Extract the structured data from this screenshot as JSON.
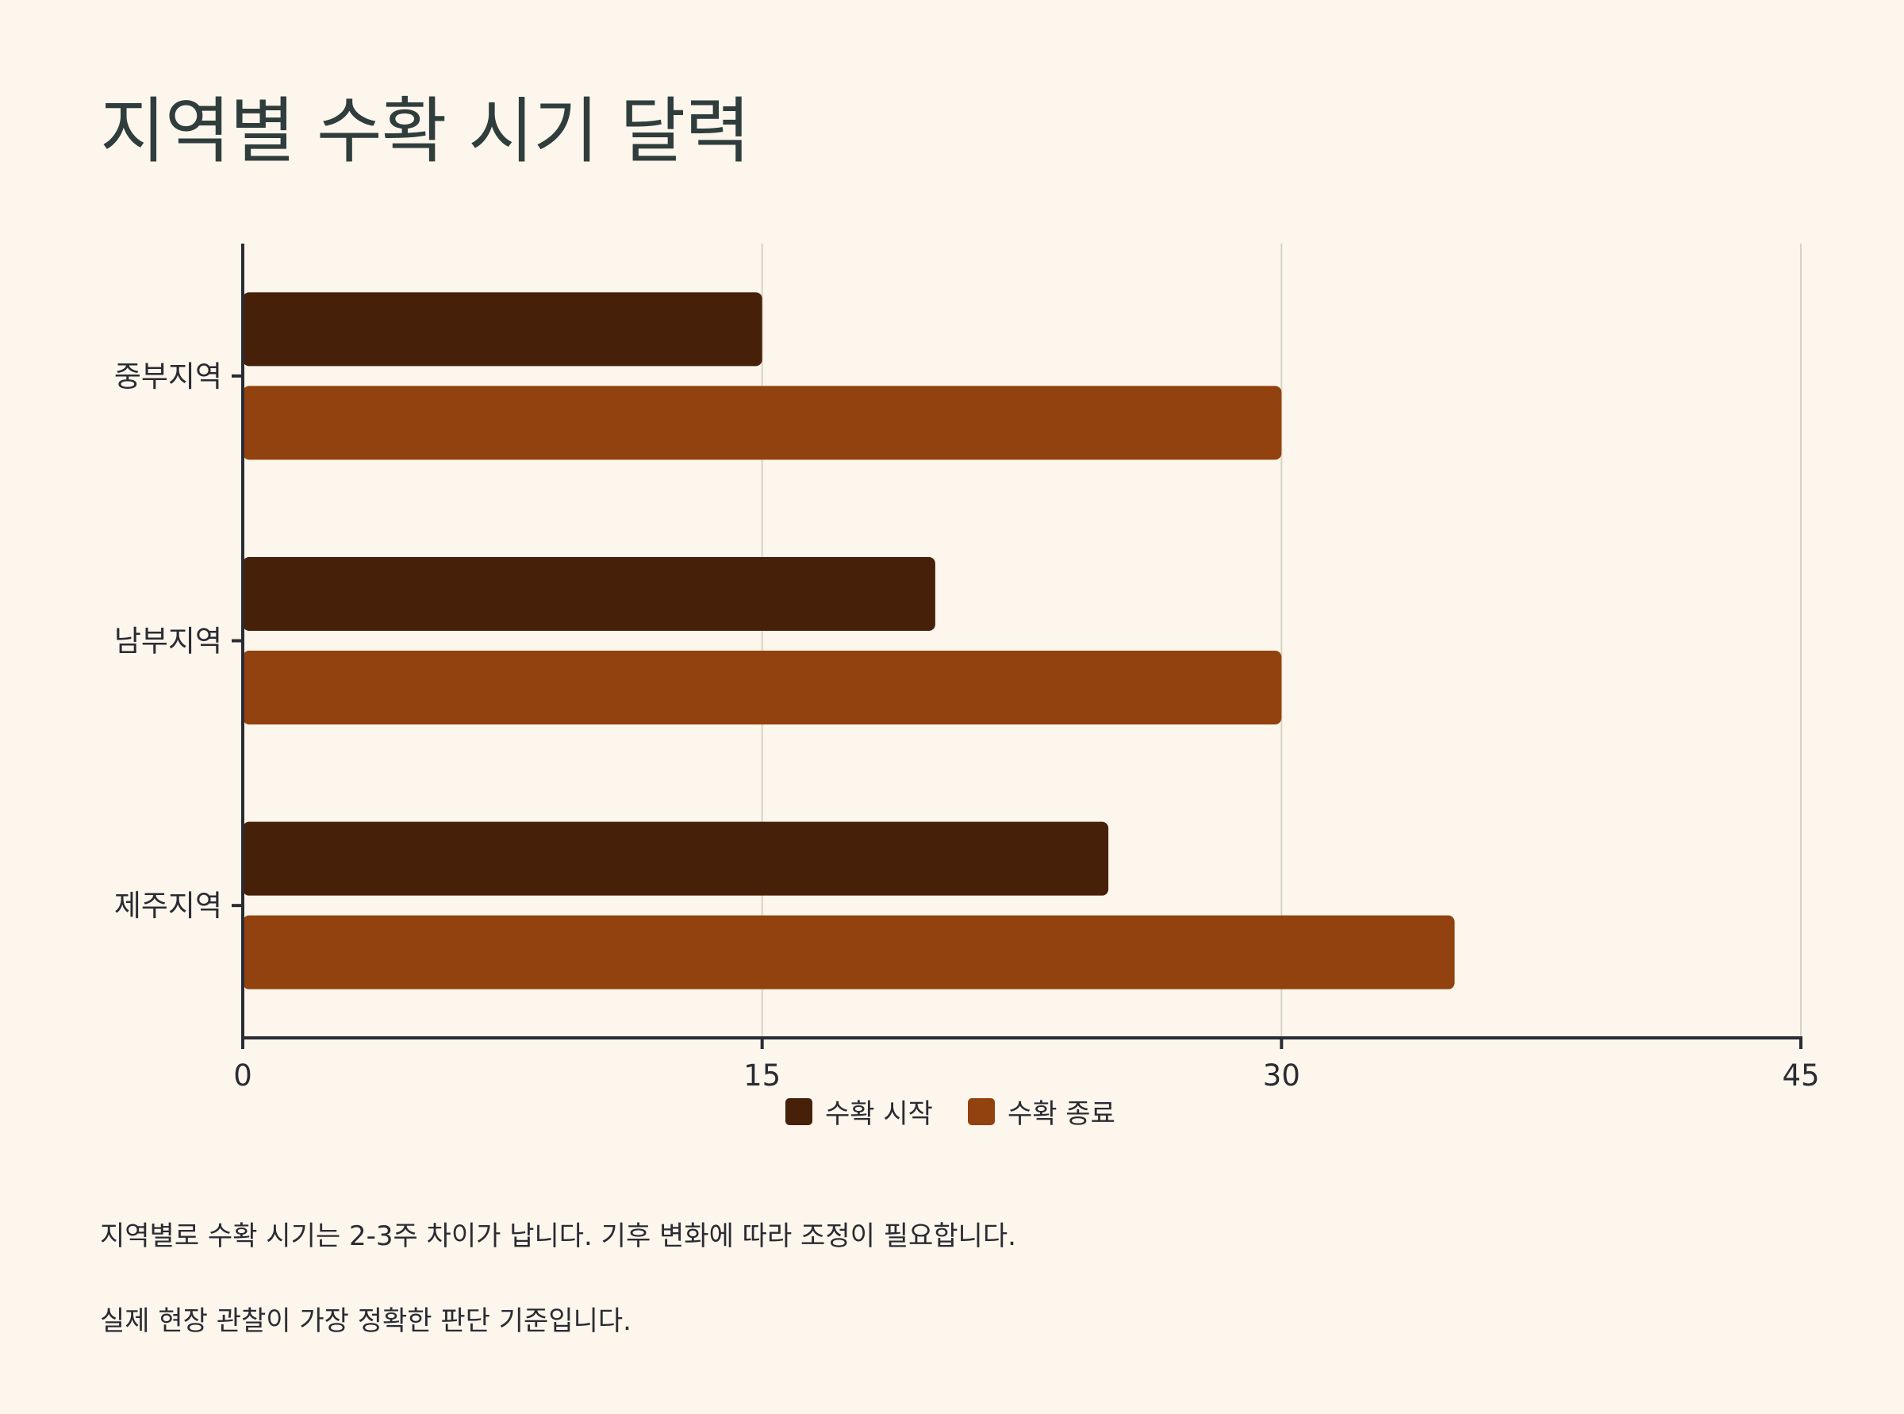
{
  "title": "지역별 수확 시기 달력",
  "colors": {
    "background": "#fdf6ec",
    "start": "#47200a",
    "end": "#92420e",
    "grid": "#d7d3c4",
    "axis": "#2b2b33"
  },
  "chart_data": {
    "type": "bar",
    "orientation": "horizontal",
    "categories": [
      "중부지역",
      "남부지역",
      "제주지역"
    ],
    "series": [
      {
        "name": "수확 시작",
        "values": [
          15,
          20,
          25
        ],
        "color": "#47200a"
      },
      {
        "name": "수확 종료",
        "values": [
          30,
          30,
          35
        ],
        "color": "#92420e"
      }
    ],
    "xlim": [
      0,
      45
    ],
    "xticks": [
      "0",
      "15",
      "30",
      "45"
    ],
    "grid": true,
    "legend": "bottom-center"
  },
  "notes": [
    "지역별로 수확 시기는 2-3주 차이가 납니다. 기후 변화에 따라 조정이 필요합니다.",
    "실제 현장 관찰이 가장 정확한 판단 기준입니다."
  ]
}
